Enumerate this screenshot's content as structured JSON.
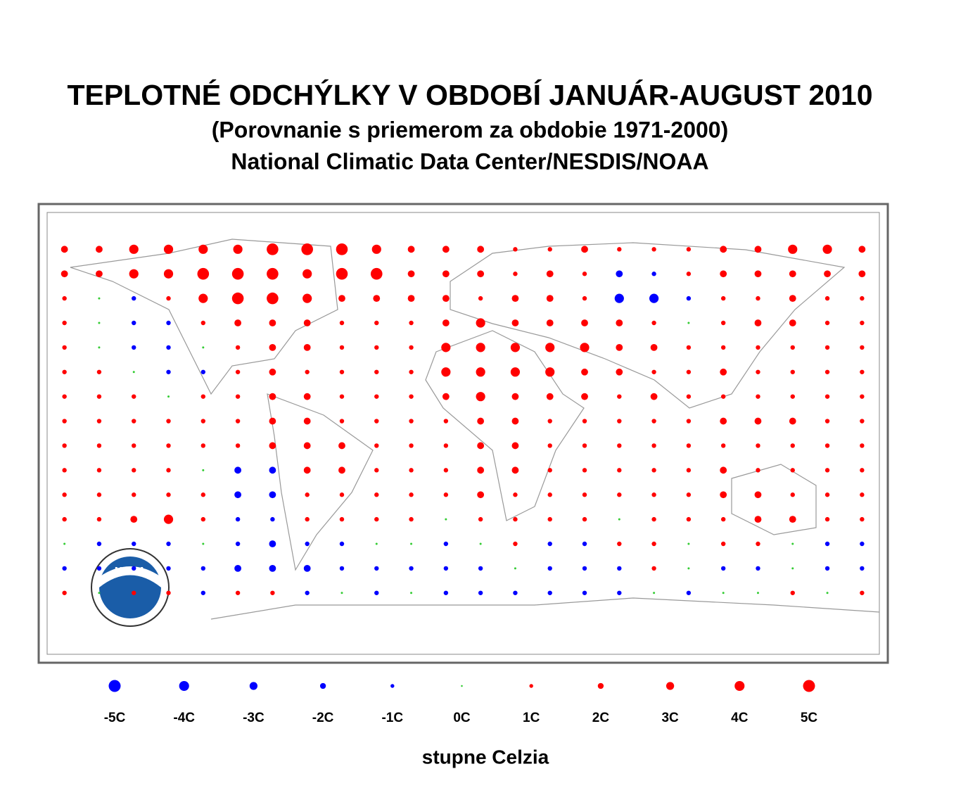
{
  "title": "TEPLOTNÉ ODCHÝLKY V OBDOBÍ JANUÁR-AUGUST 2010",
  "subtitle": "(Porovnanie s priemerom za obdobie 1971-2000)",
  "source": "National Climatic Data Center/NESDIS/NOAA",
  "logo": "NOAA",
  "map": {
    "colors": {
      "negative": "#0000ff",
      "zero": "#33cc33",
      "positive": "#ff0000"
    },
    "values": [
      [
        2,
        2,
        3,
        3,
        3,
        3,
        4,
        4,
        4,
        3,
        2,
        2,
        2,
        1,
        1,
        2,
        1,
        1,
        1,
        2,
        2,
        3,
        3,
        2
      ],
      [
        2,
        2,
        3,
        3,
        4,
        4,
        4,
        3,
        4,
        4,
        2,
        2,
        2,
        1,
        2,
        1,
        -2,
        -1,
        1,
        2,
        2,
        2,
        2,
        2
      ],
      [
        1,
        0,
        -1,
        1,
        3,
        4,
        4,
        3,
        2,
        2,
        2,
        2,
        1,
        2,
        2,
        1,
        -3,
        -3,
        -1,
        1,
        1,
        2,
        1,
        1
      ],
      [
        1,
        0,
        -1,
        -1,
        1,
        2,
        2,
        2,
        1,
        1,
        1,
        2,
        3,
        2,
        2,
        2,
        2,
        1,
        0,
        1,
        2,
        2,
        1,
        1
      ],
      [
        1,
        0,
        -1,
        -1,
        0,
        1,
        2,
        2,
        1,
        1,
        1,
        3,
        3,
        3,
        3,
        3,
        2,
        2,
        1,
        1,
        1,
        1,
        1,
        1
      ],
      [
        1,
        1,
        0,
        -1,
        -1,
        1,
        2,
        1,
        1,
        1,
        1,
        3,
        3,
        3,
        3,
        2,
        2,
        1,
        1,
        2,
        1,
        1,
        1,
        1
      ],
      [
        1,
        1,
        1,
        0,
        1,
        1,
        2,
        2,
        1,
        1,
        1,
        2,
        3,
        2,
        2,
        2,
        1,
        2,
        1,
        1,
        1,
        1,
        1,
        1
      ],
      [
        1,
        1,
        1,
        1,
        1,
        1,
        2,
        2,
        1,
        1,
        1,
        1,
        2,
        2,
        1,
        1,
        1,
        1,
        1,
        2,
        2,
        2,
        1,
        1
      ],
      [
        1,
        1,
        1,
        1,
        1,
        1,
        2,
        2,
        2,
        1,
        1,
        1,
        2,
        2,
        1,
        1,
        1,
        1,
        1,
        1,
        1,
        1,
        1,
        1
      ],
      [
        1,
        1,
        1,
        1,
        0,
        -2,
        -2,
        2,
        2,
        1,
        1,
        1,
        2,
        2,
        1,
        1,
        1,
        1,
        1,
        2,
        1,
        1,
        1,
        1
      ],
      [
        1,
        1,
        1,
        1,
        1,
        -2,
        -2,
        1,
        1,
        1,
        1,
        1,
        2,
        1,
        1,
        1,
        1,
        1,
        1,
        2,
        2,
        1,
        1,
        1
      ],
      [
        1,
        1,
        2,
        3,
        1,
        -1,
        -1,
        1,
        1,
        1,
        1,
        0,
        1,
        1,
        1,
        1,
        0,
        1,
        1,
        1,
        2,
        2,
        1,
        1
      ],
      [
        0,
        -1,
        -1,
        -1,
        0,
        -1,
        -2,
        -1,
        -1,
        0,
        0,
        -1,
        0,
        1,
        -1,
        -1,
        1,
        1,
        0,
        1,
        1,
        0,
        -1,
        -1
      ],
      [
        -1,
        -1,
        -1,
        -1,
        -1,
        -2,
        -2,
        -2,
        -1,
        -1,
        -1,
        -1,
        -1,
        0,
        -1,
        -1,
        -1,
        1,
        0,
        -1,
        -1,
        0,
        -1,
        -1
      ],
      [
        1,
        0,
        1,
        1,
        -1,
        1,
        1,
        -1,
        0,
        -1,
        0,
        -1,
        -1,
        -1,
        -1,
        -1,
        -1,
        0,
        -1,
        0,
        0,
        1,
        0,
        1
      ]
    ]
  },
  "legend": {
    "items": [
      {
        "value": -5,
        "label": "-5C"
      },
      {
        "value": -4,
        "label": "-4C"
      },
      {
        "value": -3,
        "label": "-3C"
      },
      {
        "value": -2,
        "label": "-2C"
      },
      {
        "value": -1,
        "label": "-1C"
      },
      {
        "value": 0,
        "label": "0C"
      },
      {
        "value": 1,
        "label": "1C"
      },
      {
        "value": 2,
        "label": "2C"
      },
      {
        "value": 3,
        "label": "3C"
      },
      {
        "value": 4,
        "label": "4C"
      },
      {
        "value": 5,
        "label": "5C"
      }
    ],
    "unit": "stupne Celzia"
  }
}
